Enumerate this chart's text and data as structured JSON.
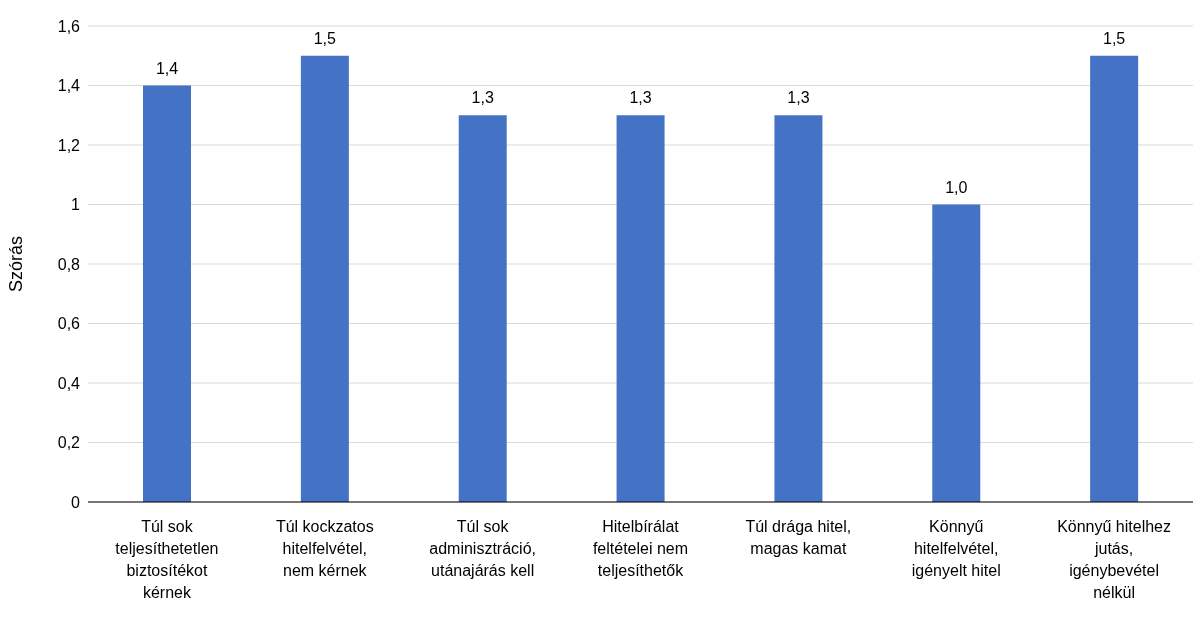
{
  "chart_data": {
    "type": "bar",
    "ylabel": "Szórás",
    "categories": [
      "Túl sok teljesíthetetlen biztosítékot kérnek",
      "Túl kockzatos hitelfelvétel, nem kérnek",
      "Túl sok adminisztráció, utánajárás kell",
      "Hitelbírálat feltételei nem teljesíthetők",
      "Túl drága hitel, magas kamat",
      "Könnyű hitelfelvétel, igényelt hitel",
      "Könnyű hitelhez jutás, igénybevétel nélkül"
    ],
    "values": [
      1.4,
      1.5,
      1.3,
      1.3,
      1.3,
      1.0,
      1.5
    ],
    "value_labels": [
      "1,4",
      "1,5",
      "1,3",
      "1,3",
      "1,3",
      "1,0",
      "1,5"
    ],
    "color": "#4472c4",
    "ylim": [
      0,
      1.6
    ],
    "yticks": [
      0,
      {
        "value": 0.2,
        "label": "0,2"
      },
      {
        "value": 0.4,
        "label": "0,4"
      },
      {
        "value": 0.6,
        "label": "0,6"
      },
      {
        "value": 0.8,
        "label": "0,8"
      },
      1,
      {
        "value": 1.2,
        "label": "1,2"
      },
      {
        "value": 1.4,
        "label": "1,4"
      },
      {
        "value": 1.6,
        "label": "1,6"
      }
    ],
    "grid": "y"
  }
}
